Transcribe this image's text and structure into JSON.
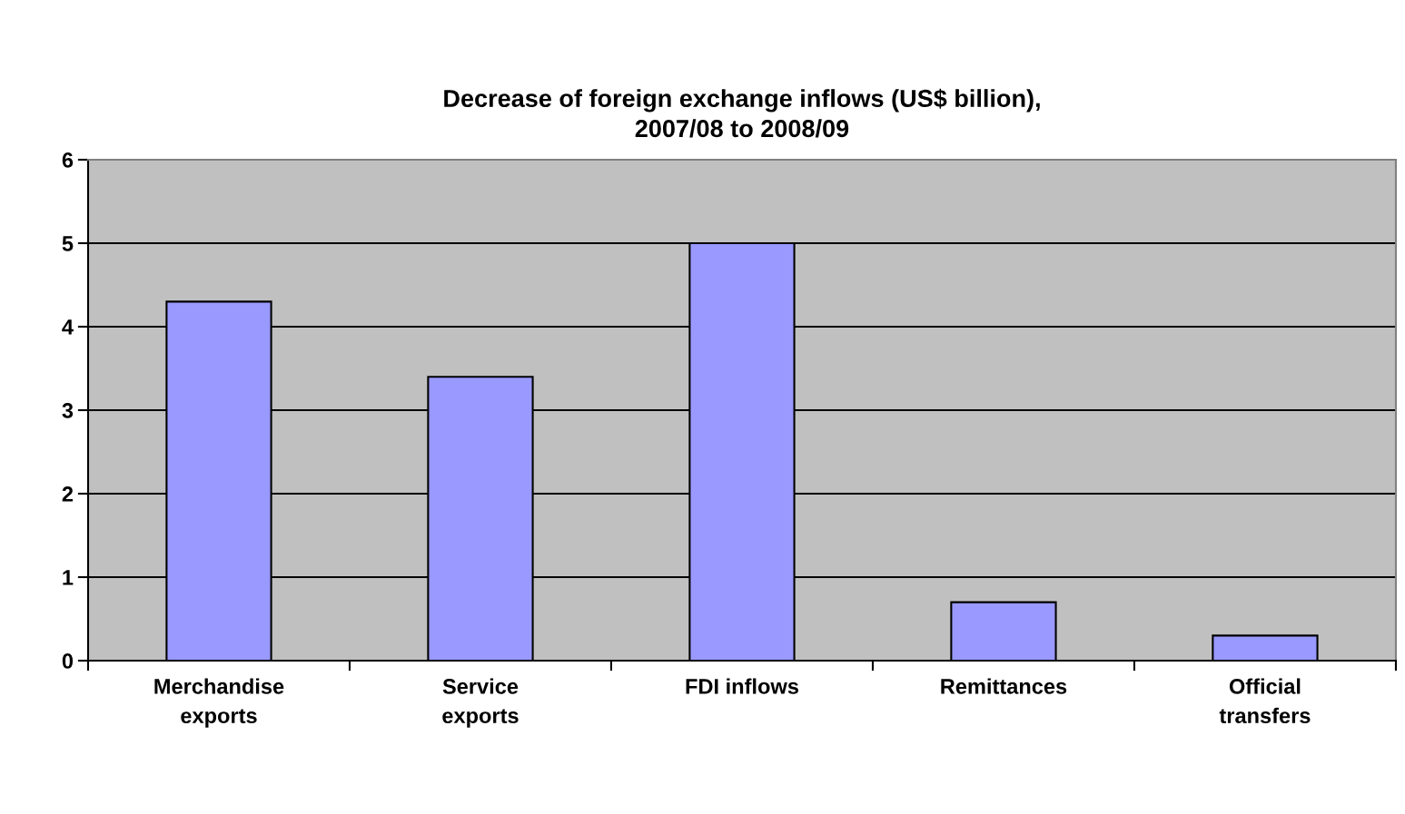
{
  "chart_data": {
    "type": "bar",
    "title": "Decrease of foreign exchange inflows (US$ billion),\n2007/08 to 2008/09",
    "categories": [
      "Merchandise\nexports",
      "Service\nexports",
      "FDI inflows",
      "Remittances",
      "Official\ntransfers"
    ],
    "values": [
      4.3,
      3.4,
      5.0,
      0.7,
      0.3
    ],
    "color": "#9999ff",
    "ylim": [
      0,
      6
    ],
    "yticks": [
      0,
      1,
      2,
      3,
      4,
      5,
      6
    ],
    "grid": "y",
    "legend": false
  }
}
